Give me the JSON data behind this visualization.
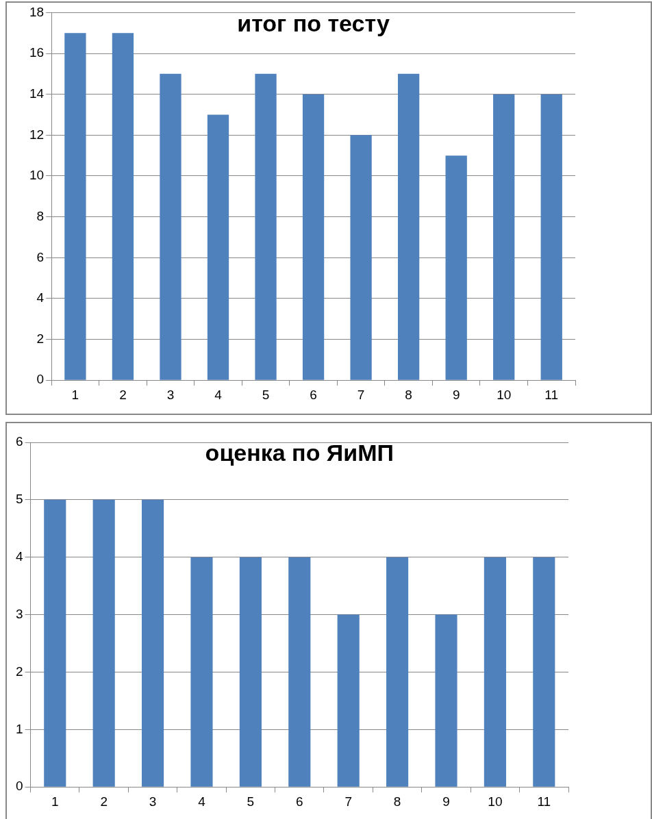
{
  "chart_data": [
    {
      "type": "bar",
      "title": "итог по тесту",
      "categories": [
        "1",
        "2",
        "3",
        "4",
        "5",
        "6",
        "7",
        "8",
        "9",
        "10",
        "11"
      ],
      "values": [
        17,
        17,
        15,
        13,
        15,
        14,
        12,
        15,
        11,
        14,
        14
      ],
      "color": "#4f81bd",
      "ylim": [
        0,
        18
      ],
      "yticks": [
        0,
        2,
        4,
        6,
        8,
        10,
        12,
        14,
        16,
        18
      ],
      "grid": "y",
      "legend": false
    },
    {
      "type": "bar",
      "title": "оценка по ЯиМП",
      "categories": [
        "1",
        "2",
        "3",
        "4",
        "5",
        "6",
        "7",
        "8",
        "9",
        "10",
        "11"
      ],
      "values": [
        5,
        5,
        5,
        4,
        4,
        4,
        3,
        4,
        3,
        4,
        4
      ],
      "color": "#4f81bd",
      "ylim": [
        0,
        6
      ],
      "yticks": [
        0,
        1,
        2,
        3,
        4,
        5,
        6
      ],
      "grid": "y",
      "legend": false
    }
  ]
}
